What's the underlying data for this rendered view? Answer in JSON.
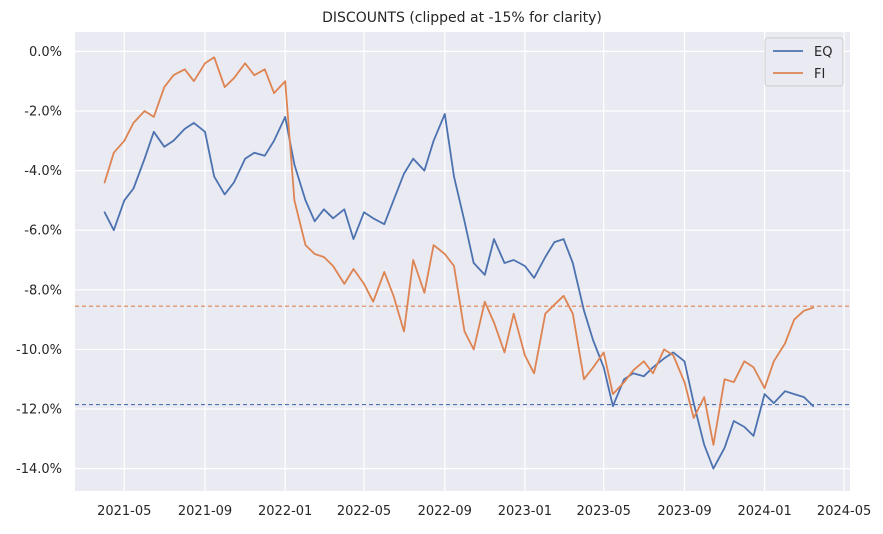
{
  "chart_data": {
    "type": "line",
    "title": "DISCOUNTS (clipped at -15% for clarity)",
    "xlabel": "",
    "ylabel": "",
    "x_range": [
      "2021-02-15",
      "2024-05-10"
    ],
    "ylim": [
      -14.75,
      0.65
    ],
    "x_ticks": [
      "2021-05-01",
      "2021-09-01",
      "2022-01-01",
      "2022-05-01",
      "2022-09-01",
      "2023-01-01",
      "2023-05-01",
      "2023-09-01",
      "2024-01-01",
      "2024-05-01"
    ],
    "x_tick_labels": [
      "2021-05",
      "2021-09",
      "2022-01",
      "2022-05",
      "2022-09",
      "2023-01",
      "2023-05",
      "2023-09",
      "2024-01",
      "2024-05"
    ],
    "y_ticks": [
      0,
      -2,
      -4,
      -6,
      -8,
      -10,
      -12,
      -14
    ],
    "y_tick_labels": [
      "0.0%",
      "-2.0%",
      "-4.0%",
      "-6.0%",
      "-8.0%",
      "-10.0%",
      "-12.0%",
      "-14.0%"
    ],
    "grid": true,
    "legend_position": "top-right",
    "colors": {
      "EQ": "#4c72b0",
      "FI": "#dd8452",
      "background": "#eaeaf2",
      "grid": "#ffffff"
    },
    "series": [
      {
        "name": "EQ",
        "x": [
          "2021-04-01",
          "2021-04-15",
          "2021-05-01",
          "2021-05-15",
          "2021-06-01",
          "2021-06-15",
          "2021-07-01",
          "2021-07-15",
          "2021-08-01",
          "2021-08-15",
          "2021-09-01",
          "2021-09-15",
          "2021-10-01",
          "2021-10-15",
          "2021-11-01",
          "2021-11-15",
          "2021-12-01",
          "2021-12-15",
          "2022-01-01",
          "2022-01-15",
          "2022-02-01",
          "2022-02-15",
          "2022-03-01",
          "2022-03-15",
          "2022-04-01",
          "2022-04-15",
          "2022-05-01",
          "2022-05-15",
          "2022-06-01",
          "2022-06-15",
          "2022-07-01",
          "2022-07-15",
          "2022-08-01",
          "2022-08-15",
          "2022-09-01",
          "2022-09-15",
          "2022-10-01",
          "2022-10-15",
          "2022-11-01",
          "2022-11-15",
          "2022-12-01",
          "2022-12-15",
          "2023-01-01",
          "2023-01-15",
          "2023-02-01",
          "2023-02-15",
          "2023-03-01",
          "2023-03-15",
          "2023-04-01",
          "2023-04-15",
          "2023-05-01",
          "2023-05-15",
          "2023-06-01",
          "2023-06-15",
          "2023-07-01",
          "2023-07-15",
          "2023-08-01",
          "2023-08-15",
          "2023-09-01",
          "2023-09-15",
          "2023-10-01",
          "2023-10-15",
          "2023-11-01",
          "2023-11-15",
          "2023-12-01",
          "2023-12-15",
          "2024-01-01",
          "2024-01-15",
          "2024-02-01",
          "2024-02-15",
          "2024-03-01",
          "2024-03-15"
        ],
        "values": [
          -5.4,
          -6.0,
          -5.0,
          -4.6,
          -3.6,
          -2.7,
          -3.2,
          -3.0,
          -2.6,
          -2.4,
          -2.7,
          -4.2,
          -4.8,
          -4.4,
          -3.6,
          -3.4,
          -3.5,
          -3.0,
          -2.2,
          -3.8,
          -5.0,
          -5.7,
          -5.3,
          -5.6,
          -5.3,
          -6.3,
          -5.4,
          -5.6,
          -5.8,
          -5.0,
          -4.1,
          -3.6,
          -4.0,
          -3.0,
          -2.1,
          -4.2,
          -5.7,
          -7.1,
          -7.5,
          -6.3,
          -7.1,
          -7.0,
          -7.2,
          -7.6,
          -6.9,
          -6.4,
          -6.3,
          -7.1,
          -8.7,
          -9.7,
          -10.6,
          -11.9,
          -11.0,
          -10.8,
          -10.9,
          -10.6,
          -10.3,
          -10.1,
          -10.4,
          -11.8,
          -13.2,
          -14.0,
          -13.3,
          -12.4,
          -12.6,
          -12.9,
          -11.5,
          -11.8,
          -11.4,
          -11.5,
          -11.6,
          -11.9
        ]
      },
      {
        "name": "FI",
        "x": [
          "2021-04-01",
          "2021-04-15",
          "2021-05-01",
          "2021-05-15",
          "2021-06-01",
          "2021-06-15",
          "2021-07-01",
          "2021-07-15",
          "2021-08-01",
          "2021-08-15",
          "2021-09-01",
          "2021-09-15",
          "2021-10-01",
          "2021-10-15",
          "2021-11-01",
          "2021-11-15",
          "2021-12-01",
          "2021-12-15",
          "2022-01-01",
          "2022-01-15",
          "2022-02-01",
          "2022-02-15",
          "2022-03-01",
          "2022-03-15",
          "2022-04-01",
          "2022-04-15",
          "2022-05-01",
          "2022-05-15",
          "2022-06-01",
          "2022-06-15",
          "2022-07-01",
          "2022-07-15",
          "2022-08-01",
          "2022-08-15",
          "2022-09-01",
          "2022-09-15",
          "2022-10-01",
          "2022-10-15",
          "2022-11-01",
          "2022-11-15",
          "2022-12-01",
          "2022-12-15",
          "2023-01-01",
          "2023-01-15",
          "2023-02-01",
          "2023-02-15",
          "2023-03-01",
          "2023-03-15",
          "2023-04-01",
          "2023-04-15",
          "2023-05-01",
          "2023-05-15",
          "2023-06-01",
          "2023-06-15",
          "2023-07-01",
          "2023-07-15",
          "2023-08-01",
          "2023-08-15",
          "2023-09-01",
          "2023-09-15",
          "2023-10-01",
          "2023-10-15",
          "2023-11-01",
          "2023-11-15",
          "2023-12-01",
          "2023-12-15",
          "2024-01-01",
          "2024-01-15",
          "2024-02-01",
          "2024-02-15",
          "2024-03-01",
          "2024-03-15"
        ],
        "values": [
          -4.4,
          -3.4,
          -3.0,
          -2.4,
          -2.0,
          -2.2,
          -1.2,
          -0.8,
          -0.6,
          -1.0,
          -0.4,
          -0.2,
          -1.2,
          -0.9,
          -0.4,
          -0.8,
          -0.6,
          -1.4,
          -1.0,
          -5.0,
          -6.5,
          -6.8,
          -6.9,
          -7.2,
          -7.8,
          -7.3,
          -7.8,
          -8.4,
          -7.4,
          -8.2,
          -9.4,
          -7.0,
          -8.1,
          -6.5,
          -6.8,
          -7.2,
          -9.4,
          -10.0,
          -8.4,
          -9.1,
          -10.1,
          -8.8,
          -10.2,
          -10.8,
          -8.8,
          -8.5,
          -8.2,
          -8.8,
          -11.0,
          -10.6,
          -10.1,
          -11.5,
          -11.1,
          -10.7,
          -10.4,
          -10.8,
          -10.0,
          -10.2,
          -11.1,
          -12.3,
          -11.6,
          -13.2,
          -11.0,
          -11.1,
          -10.4,
          -10.6,
          -11.3,
          -10.4,
          -9.8,
          -9.0,
          -8.7,
          -8.6
        ]
      }
    ],
    "reference_lines": [
      {
        "series": "FI",
        "y": -8.55
      },
      {
        "series": "EQ",
        "y": -11.85
      }
    ]
  }
}
